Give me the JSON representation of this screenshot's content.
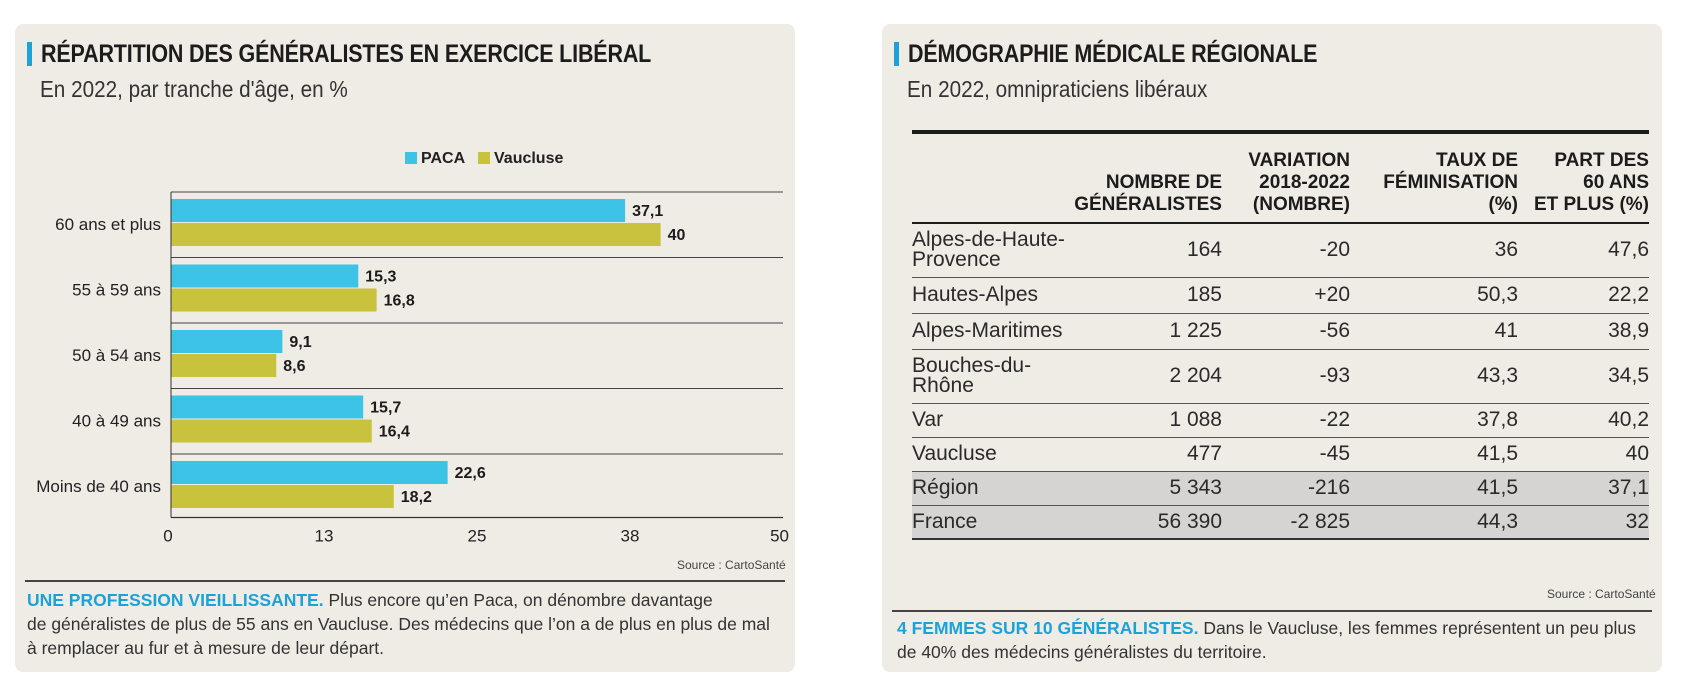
{
  "left": {
    "title": "RÉPARTITION DES GÉNÉRALISTES EN EXERCICE LIBÉRAL",
    "subtitle": "En 2022, par tranche d'âge, en %",
    "source": "Source : CartoSanté",
    "caption": {
      "lead": "UNE PROFESSION VIEILLISSANTE.",
      "line1": " Plus encore qu’en Paca, on dénombre davantage",
      "line2": "de généralistes de plus de 55 ans en Vaucluse. Des médecins que l’on a de plus en plus de mal",
      "line3": "à remplacer au fur et à mesure de leur départ."
    }
  },
  "chart_data": {
    "type": "bar",
    "orientation": "horizontal",
    "title": "RÉPARTITION DES GÉNÉRALISTES EN EXERCICE LIBÉRAL",
    "subtitle": "En 2022, par tranche d'âge, en %",
    "categories": [
      "60 ans et plus",
      "55 à 59 ans",
      "50 à 54 ans",
      "40 à 49 ans",
      "Moins de 40 ans"
    ],
    "series": [
      {
        "name": "PACA",
        "values": [
          "37,1",
          "15,3",
          "9,1",
          "15,7",
          "22,6"
        ],
        "numeric": [
          37.1,
          15.3,
          9.1,
          15.7,
          22.6
        ],
        "color": "#3dc3e6"
      },
      {
        "name": "Vaucluse",
        "values": [
          "40",
          "16,8",
          "8,6",
          "16,4",
          "18,2"
        ],
        "numeric": [
          40,
          16.8,
          8.6,
          16.4,
          18.2
        ],
        "color": "#c9c23c"
      }
    ],
    "xlim": [
      0,
      50
    ],
    "xticks": [
      "0",
      "13",
      "25",
      "38",
      "50"
    ],
    "legend_position": "top",
    "grid": false
  },
  "right": {
    "title": "DÉMOGRAPHIE MÉDICALE RÉGIONALE",
    "subtitle": "En 2022, omnipraticiens libéraux",
    "source": "Source : CartoSanté",
    "caption": {
      "lead": "4 FEMMES SUR 10 GÉNÉRALISTES.",
      "line1": " Dans le Vaucluse, les femmes représentent un peu plus",
      "line2": "de 40% des médecins généralistes du territoire."
    },
    "table": {
      "headers": [
        "",
        "NOMBRE DE\nGÉNÉRALISTES",
        "VARIATION\n2018-2022\n(NOMBRE)",
        "TAUX DE\nFÉMINISATION\n(%)",
        "PART DES\n60 ANS\nET PLUS (%)"
      ],
      "rows": [
        {
          "cells": [
            "Alpes-de-Haute-\nProvence",
            "164",
            "-20",
            "36",
            "47,6"
          ],
          "highlight": false
        },
        {
          "cells": [
            "Hautes-Alpes",
            "185",
            "+20",
            "50,3",
            "22,2"
          ],
          "highlight": false
        },
        {
          "cells": [
            "Alpes-Maritimes",
            "1 225",
            "-56",
            "41",
            "38,9"
          ],
          "highlight": false
        },
        {
          "cells": [
            "Bouches-du-\nRhône",
            "2 204",
            "-93",
            "43,3",
            "34,5"
          ],
          "highlight": false
        },
        {
          "cells": [
            "Var",
            "1 088",
            "-22",
            "37,8",
            "40,2"
          ],
          "highlight": false
        },
        {
          "cells": [
            "Vaucluse",
            "477",
            "-45",
            "41,5",
            "40"
          ],
          "highlight": false
        },
        {
          "cells": [
            "Région",
            "5 343",
            "-216",
            "41,5",
            "37,1"
          ],
          "highlight": true
        },
        {
          "cells": [
            "France",
            "56 390",
            "-2 825",
            "44,3",
            "32"
          ],
          "highlight": true
        }
      ]
    }
  },
  "colors": {
    "accent": "#1aa3d9",
    "panel_bg": "#efebe5",
    "highlight_row": "#d6d4d2"
  }
}
